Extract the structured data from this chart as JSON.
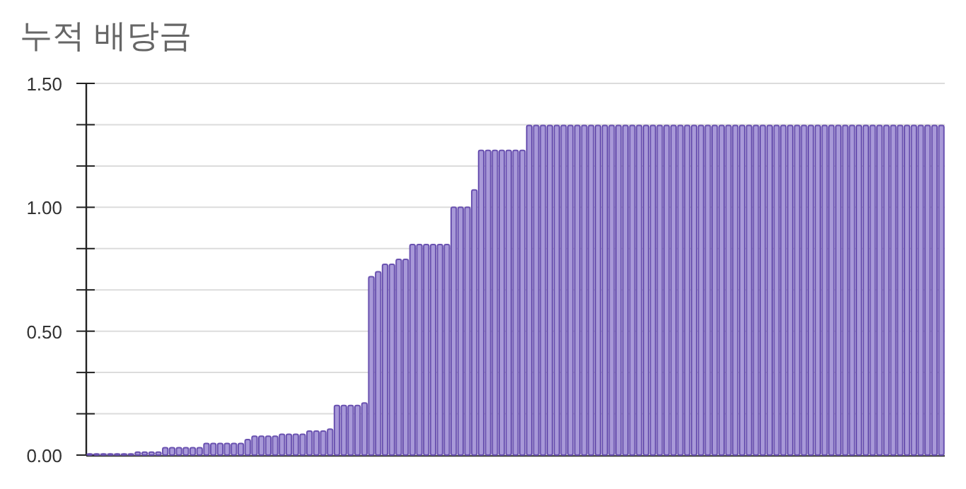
{
  "chart_data": {
    "type": "bar",
    "title": "누적 배당금",
    "categories": [
      null,
      null,
      null,
      null,
      null,
      null,
      null,
      null,
      null,
      null,
      null,
      null,
      null,
      null,
      null,
      null,
      null,
      null,
      null,
      null,
      null,
      null,
      null,
      null,
      null,
      null,
      null,
      null,
      null,
      null,
      null,
      null,
      null,
      null,
      null,
      null,
      null,
      null,
      null,
      null,
      null,
      null,
      null,
      null,
      null,
      null,
      null,
      null,
      null,
      null,
      null,
      null,
      null,
      null,
      null,
      null,
      null,
      null,
      null,
      null,
      null,
      null,
      null,
      null,
      null,
      null,
      null,
      null,
      null,
      null,
      null,
      null,
      null,
      null,
      null,
      null,
      null,
      null,
      null,
      null,
      null,
      null,
      null,
      null,
      null,
      null,
      null,
      null,
      null,
      null,
      null,
      null,
      null,
      null,
      null,
      null,
      null,
      null,
      null,
      null,
      null,
      null,
      null,
      null,
      null,
      null,
      null,
      null,
      null,
      null,
      null,
      null,
      null,
      null,
      null,
      null,
      null,
      null,
      null,
      null,
      null,
      null,
      null,
      null,
      null
    ],
    "values": [
      0.005,
      0.005,
      0.005,
      0.005,
      0.005,
      0.005,
      0.005,
      0.012,
      0.012,
      0.012,
      0.012,
      0.03,
      0.03,
      0.03,
      0.03,
      0.03,
      0.03,
      0.047,
      0.047,
      0.047,
      0.047,
      0.047,
      0.047,
      0.063,
      0.076,
      0.076,
      0.076,
      0.076,
      0.084,
      0.084,
      0.084,
      0.084,
      0.097,
      0.097,
      0.097,
      0.105,
      0.2,
      0.2,
      0.2,
      0.2,
      0.21,
      0.72,
      0.74,
      0.77,
      0.77,
      0.79,
      0.79,
      0.85,
      0.85,
      0.85,
      0.85,
      0.85,
      0.85,
      1.0,
      1.0,
      1.0,
      1.07,
      1.23,
      1.23,
      1.23,
      1.23,
      1.23,
      1.23,
      1.23,
      1.33,
      1.33,
      1.33,
      1.33,
      1.33,
      1.33,
      1.33,
      1.33,
      1.33,
      1.33,
      1.33,
      1.33,
      1.33,
      1.33,
      1.33,
      1.33,
      1.33,
      1.33,
      1.33,
      1.33,
      1.33,
      1.33,
      1.33,
      1.33,
      1.33,
      1.33,
      1.33,
      1.33,
      1.33,
      1.33,
      1.33,
      1.33,
      1.33,
      1.33,
      1.33,
      1.33,
      1.33,
      1.33,
      1.33,
      1.33,
      1.33,
      1.33,
      1.33,
      1.33,
      1.33,
      1.33,
      1.33,
      1.33,
      1.33,
      1.33,
      1.33,
      1.33,
      1.33,
      1.33,
      1.33,
      1.33,
      1.33,
      1.33,
      1.33,
      1.33,
      1.33
    ],
    "color": "#a899d8",
    "ylim": [
      0,
      1.5
    ],
    "yticks": [
      {
        "value": 0,
        "label": "0.00"
      },
      {
        "value": 0.1667,
        "label": null
      },
      {
        "value": 0.3333,
        "label": null
      },
      {
        "value": 0.5,
        "label": "0.50"
      },
      {
        "value": 0.6667,
        "label": null
      },
      {
        "value": 0.8333,
        "label": null
      },
      {
        "value": 1,
        "label": "1.00"
      },
      {
        "value": 1.1667,
        "label": null
      },
      {
        "value": 1.3333,
        "label": null
      },
      {
        "value": 1.5,
        "label": "1.50"
      }
    ],
    "grid": "y"
  }
}
